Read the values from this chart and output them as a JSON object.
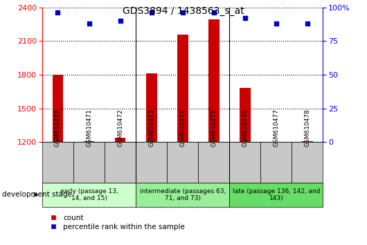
{
  "title": "GDS3894 / 1438563_s_at",
  "samples": [
    "GSM610470",
    "GSM610471",
    "GSM610472",
    "GSM610473",
    "GSM610474",
    "GSM610475",
    "GSM610476",
    "GSM610477",
    "GSM610478"
  ],
  "counts": [
    1800,
    1210,
    1240,
    1810,
    2160,
    2290,
    1680,
    1205,
    1210
  ],
  "percentiles": [
    96,
    88,
    90,
    96,
    96,
    96,
    92,
    88,
    88
  ],
  "ylim_left": [
    1200,
    2400
  ],
  "ylim_right": [
    0,
    100
  ],
  "yticks_left": [
    1200,
    1500,
    1800,
    2100,
    2400
  ],
  "yticks_right": [
    0,
    25,
    50,
    75,
    100
  ],
  "bar_color": "#cc0000",
  "dot_color": "#0000cc",
  "groups": [
    {
      "label": "early (passage 13,\n14, and 15)",
      "start": 0,
      "end": 3,
      "color": "#ccffcc"
    },
    {
      "label": "intermediate (passages 63,\n71, and 73)",
      "start": 3,
      "end": 6,
      "color": "#99ee99"
    },
    {
      "label": "late (passage 136, 142, and\n143)",
      "start": 6,
      "end": 9,
      "color": "#66dd66"
    }
  ],
  "dev_stage_label": "development stage",
  "legend_count_label": "count",
  "legend_pct_label": "percentile rank within the sample",
  "bar_width": 0.35
}
